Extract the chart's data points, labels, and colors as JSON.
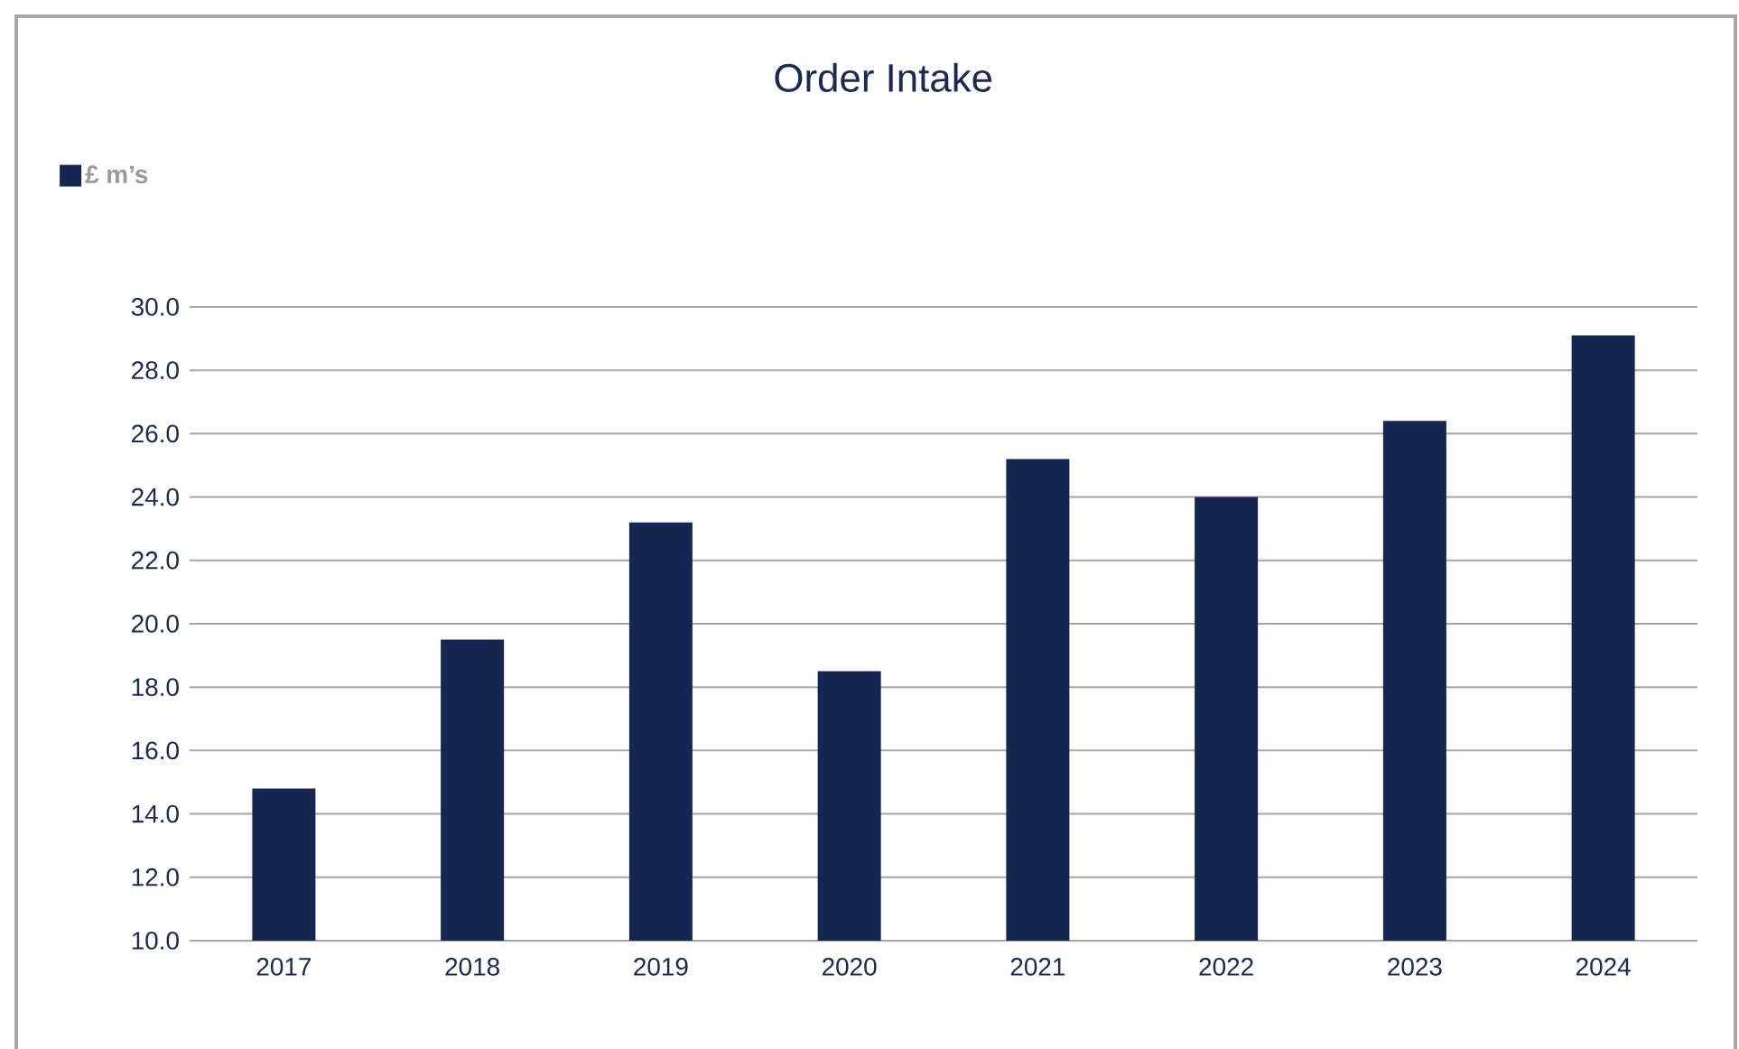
{
  "chart_data": {
    "type": "bar",
    "title": "Order Intake",
    "categories": [
      "2017",
      "2018",
      "2019",
      "2020",
      "2021",
      "2022",
      "2023",
      "2024"
    ],
    "series": [
      {
        "name": "£ m’s",
        "color": "#152653",
        "values": [
          14.8,
          19.5,
          23.2,
          18.5,
          25.2,
          24.0,
          26.4,
          29.1
        ]
      }
    ],
    "ylim": [
      10,
      30
    ],
    "yticks": [
      {
        "value": 10,
        "label": "10.0"
      },
      {
        "value": 12,
        "label": "12.0"
      },
      {
        "value": 14,
        "label": "14.0"
      },
      {
        "value": 16,
        "label": "16.0"
      },
      {
        "value": 18,
        "label": "18.0"
      },
      {
        "value": 20,
        "label": "20.0"
      },
      {
        "value": 22,
        "label": "22.0"
      },
      {
        "value": 24,
        "label": "24.0"
      },
      {
        "value": 26,
        "label": "26.0"
      },
      {
        "value": 28,
        "label": "28.0"
      },
      {
        "value": 30,
        "label": "30.0"
      }
    ],
    "grid": "y",
    "legend": "top left"
  }
}
